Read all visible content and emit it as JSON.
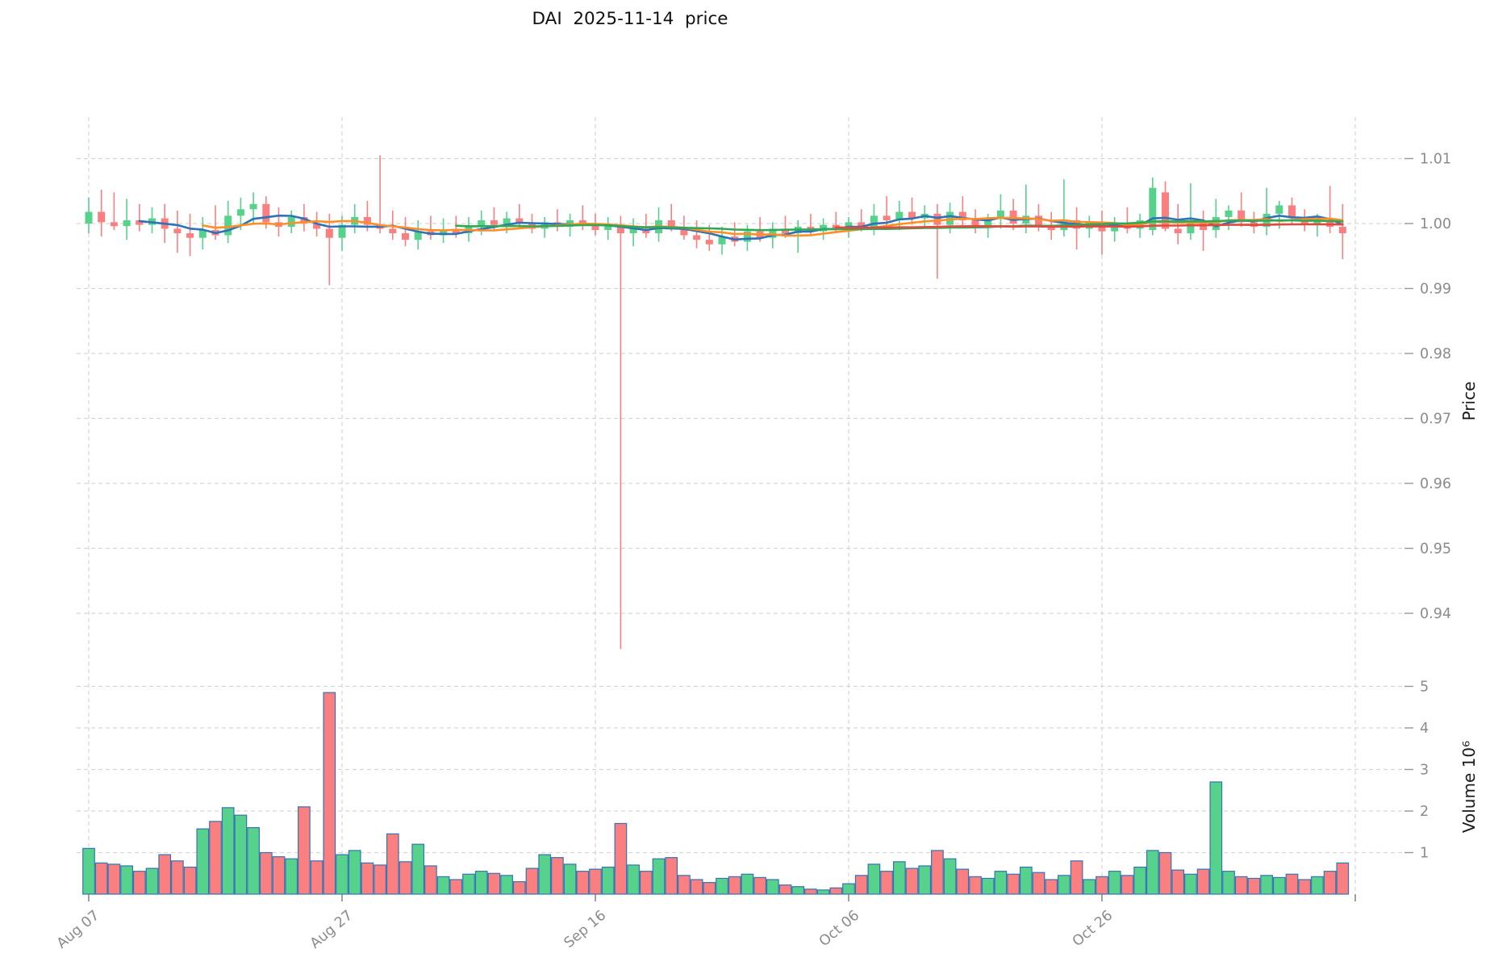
{
  "title": "DAI  2025-11-14  price",
  "chart_data": {
    "type": "candlestick",
    "panels": [
      "price",
      "volume"
    ],
    "price_axis": {
      "label": "Price",
      "ticks": [
        "1.01",
        "1.00",
        "0.99",
        "0.98",
        "0.97",
        "0.96",
        "0.95",
        "0.94"
      ],
      "ylim": [
        0.933,
        1.016
      ],
      "grid": "dashed"
    },
    "volume_axis": {
      "label": "Volume 10⁶",
      "ticks": [
        "1",
        "2",
        "3",
        "4",
        "5"
      ],
      "ylim": [
        0,
        5.15
      ],
      "unit": 1000000
    },
    "x_ticks": [
      {
        "label": "Aug 07",
        "day": 0
      },
      {
        "label": "Aug 27",
        "day": 20
      },
      {
        "label": "Sep 16",
        "day": 40
      },
      {
        "label": "Oct 06",
        "day": 60
      },
      {
        "label": "Oct 26",
        "day": 80
      },
      {
        "label": "",
        "day": 100
      }
    ],
    "colors": {
      "up": "#57d28c",
      "down": "#f97f80",
      "volume_border": "#3474b3",
      "grid": "#d6d6d6",
      "tick_text": "#8b8b8b",
      "axis_text": "#1a1a1a"
    },
    "mavs": [
      {
        "period": 5,
        "color": "#2e72b8"
      },
      {
        "period": 10,
        "color": "#ff8e27"
      },
      {
        "period": 30,
        "color": "#33a852"
      },
      {
        "period": 60,
        "color": "#e4483e"
      }
    ],
    "candles": [
      {
        "date": "2025-08-07",
        "o": 1.0,
        "h": 1.004,
        "l": 0.9985,
        "c": 1.0018,
        "v": 1.1
      },
      {
        "date": "2025-08-08",
        "o": 1.0018,
        "h": 1.0052,
        "l": 0.998,
        "c": 1.0002,
        "v": 0.75
      },
      {
        "date": "2025-08-09",
        "o": 1.0002,
        "h": 1.0048,
        "l": 0.999,
        "c": 0.9996,
        "v": 0.72
      },
      {
        "date": "2025-08-10",
        "o": 0.9996,
        "h": 1.0038,
        "l": 0.9975,
        "c": 1.0005,
        "v": 0.68
      },
      {
        "date": "2025-08-11",
        "o": 1.0005,
        "h": 1.003,
        "l": 0.9988,
        "c": 0.9998,
        "v": 0.55
      },
      {
        "date": "2025-08-12",
        "o": 0.9998,
        "h": 1.0025,
        "l": 0.9985,
        "c": 1.0008,
        "v": 0.62
      },
      {
        "date": "2025-08-13",
        "o": 1.0008,
        "h": 1.003,
        "l": 0.997,
        "c": 0.9992,
        "v": 0.95
      },
      {
        "date": "2025-08-14",
        "o": 0.9992,
        "h": 1.002,
        "l": 0.9955,
        "c": 0.9985,
        "v": 0.8
      },
      {
        "date": "2025-08-15",
        "o": 0.9985,
        "h": 1.0015,
        "l": 0.995,
        "c": 0.9978,
        "v": 0.65
      },
      {
        "date": "2025-08-16",
        "o": 0.9978,
        "h": 1.001,
        "l": 0.996,
        "c": 0.999,
        "v": 1.57
      },
      {
        "date": "2025-08-17",
        "o": 0.999,
        "h": 1.0028,
        "l": 0.9975,
        "c": 0.9982,
        "v": 1.75
      },
      {
        "date": "2025-08-18",
        "o": 0.9982,
        "h": 1.0035,
        "l": 0.997,
        "c": 1.0012,
        "v": 2.08
      },
      {
        "date": "2025-08-19",
        "o": 1.0012,
        "h": 1.004,
        "l": 0.999,
        "c": 1.0022,
        "v": 1.9
      },
      {
        "date": "2025-08-20",
        "o": 1.0022,
        "h": 1.0048,
        "l": 0.9998,
        "c": 1.003,
        "v": 1.6
      },
      {
        "date": "2025-08-21",
        "o": 1.003,
        "h": 1.0042,
        "l": 0.9992,
        "c": 1.0002,
        "v": 1.0
      },
      {
        "date": "2025-08-22",
        "o": 1.0002,
        "h": 1.0025,
        "l": 0.998,
        "c": 0.9995,
        "v": 0.9
      },
      {
        "date": "2025-08-23",
        "o": 0.9995,
        "h": 1.002,
        "l": 0.9985,
        "c": 1.001,
        "v": 0.85
      },
      {
        "date": "2025-08-24",
        "o": 1.001,
        "h": 1.003,
        "l": 0.9988,
        "c": 1.0,
        "v": 2.1
      },
      {
        "date": "2025-08-25",
        "o": 1.0,
        "h": 1.0018,
        "l": 0.998,
        "c": 0.9992,
        "v": 0.8
      },
      {
        "date": "2025-08-26",
        "o": 0.9992,
        "h": 1.0015,
        "l": 0.9905,
        "c": 0.9978,
        "v": 4.85
      },
      {
        "date": "2025-08-27",
        "o": 0.9978,
        "h": 1.0012,
        "l": 0.9958,
        "c": 0.9998,
        "v": 0.95
      },
      {
        "date": "2025-08-28",
        "o": 0.9998,
        "h": 1.003,
        "l": 0.9985,
        "c": 1.001,
        "v": 1.05
      },
      {
        "date": "2025-08-29",
        "o": 1.001,
        "h": 1.0035,
        "l": 0.9988,
        "c": 0.9998,
        "v": 0.75
      },
      {
        "date": "2025-08-30",
        "o": 0.9998,
        "h": 1.0105,
        "l": 0.9985,
        "c": 0.9992,
        "v": 0.7
      },
      {
        "date": "2025-08-31",
        "o": 0.9992,
        "h": 1.002,
        "l": 0.9975,
        "c": 0.9985,
        "v": 1.45
      },
      {
        "date": "2025-09-01",
        "o": 0.9985,
        "h": 1.001,
        "l": 0.9965,
        "c": 0.9975,
        "v": 0.78
      },
      {
        "date": "2025-09-02",
        "o": 0.9975,
        "h": 1.0005,
        "l": 0.996,
        "c": 0.9988,
        "v": 1.2
      },
      {
        "date": "2025-09-03",
        "o": 0.9988,
        "h": 1.0012,
        "l": 0.9975,
        "c": 0.9982,
        "v": 0.68
      },
      {
        "date": "2025-09-04",
        "o": 0.9982,
        "h": 1.0008,
        "l": 0.997,
        "c": 0.999,
        "v": 0.42
      },
      {
        "date": "2025-09-05",
        "o": 0.999,
        "h": 1.0012,
        "l": 0.9978,
        "c": 0.9985,
        "v": 0.35
      },
      {
        "date": "2025-09-06",
        "o": 0.9985,
        "h": 1.001,
        "l": 0.9972,
        "c": 0.9995,
        "v": 0.48
      },
      {
        "date": "2025-09-07",
        "o": 0.9995,
        "h": 1.002,
        "l": 0.9982,
        "c": 1.0005,
        "v": 0.55
      },
      {
        "date": "2025-09-08",
        "o": 1.0005,
        "h": 1.0025,
        "l": 0.999,
        "c": 0.9998,
        "v": 0.5
      },
      {
        "date": "2025-09-09",
        "o": 0.9998,
        "h": 1.0018,
        "l": 0.9985,
        "c": 1.0008,
        "v": 0.45
      },
      {
        "date": "2025-09-10",
        "o": 1.0008,
        "h": 1.003,
        "l": 0.9992,
        "c": 1.0,
        "v": 0.3
      },
      {
        "date": "2025-09-11",
        "o": 1.0,
        "h": 1.0015,
        "l": 0.9985,
        "c": 0.9992,
        "v": 0.62
      },
      {
        "date": "2025-09-12",
        "o": 0.9992,
        "h": 1.001,
        "l": 0.9978,
        "c": 1.0002,
        "v": 0.95
      },
      {
        "date": "2025-09-13",
        "o": 1.0002,
        "h": 1.0022,
        "l": 0.9988,
        "c": 0.9995,
        "v": 0.88
      },
      {
        "date": "2025-09-14",
        "o": 0.9995,
        "h": 1.0015,
        "l": 0.998,
        "c": 1.0005,
        "v": 0.72
      },
      {
        "date": "2025-09-15",
        "o": 1.0005,
        "h": 1.0028,
        "l": 0.999,
        "c": 0.9998,
        "v": 0.55
      },
      {
        "date": "2025-09-16",
        "o": 0.9998,
        "h": 1.0015,
        "l": 0.9982,
        "c": 0.999,
        "v": 0.6
      },
      {
        "date": "2025-09-17",
        "o": 0.999,
        "h": 1.001,
        "l": 0.9975,
        "c": 0.9998,
        "v": 0.65
      },
      {
        "date": "2025-09-18",
        "o": 0.9998,
        "h": 1.0012,
        "l": 0.9345,
        "c": 0.9985,
        "v": 1.7
      },
      {
        "date": "2025-09-19",
        "o": 0.9985,
        "h": 1.0008,
        "l": 0.9965,
        "c": 0.9992,
        "v": 0.7
      },
      {
        "date": "2025-09-20",
        "o": 0.9992,
        "h": 1.0015,
        "l": 0.9978,
        "c": 0.9985,
        "v": 0.55
      },
      {
        "date": "2025-09-21",
        "o": 0.9985,
        "h": 1.0025,
        "l": 0.9972,
        "c": 1.0005,
        "v": 0.85
      },
      {
        "date": "2025-09-22",
        "o": 1.0005,
        "h": 1.003,
        "l": 0.9988,
        "c": 0.9995,
        "v": 0.88
      },
      {
        "date": "2025-09-23",
        "o": 0.9995,
        "h": 1.0012,
        "l": 0.9975,
        "c": 0.9982,
        "v": 0.45
      },
      {
        "date": "2025-09-24",
        "o": 0.9982,
        "h": 1.0005,
        "l": 0.9962,
        "c": 0.9975,
        "v": 0.35
      },
      {
        "date": "2025-09-25",
        "o": 0.9975,
        "h": 0.9998,
        "l": 0.9958,
        "c": 0.9968,
        "v": 0.28
      },
      {
        "date": "2025-09-26",
        "o": 0.9968,
        "h": 0.9995,
        "l": 0.9952,
        "c": 0.998,
        "v": 0.38
      },
      {
        "date": "2025-09-27",
        "o": 0.998,
        "h": 1.0002,
        "l": 0.9965,
        "c": 0.9972,
        "v": 0.42
      },
      {
        "date": "2025-09-28",
        "o": 0.9972,
        "h": 0.9998,
        "l": 0.9958,
        "c": 0.9988,
        "v": 0.48
      },
      {
        "date": "2025-09-29",
        "o": 0.9988,
        "h": 1.001,
        "l": 0.9972,
        "c": 0.9978,
        "v": 0.4
      },
      {
        "date": "2025-09-30",
        "o": 0.9978,
        "h": 1.0002,
        "l": 0.9962,
        "c": 0.9992,
        "v": 0.35
      },
      {
        "date": "2025-10-01",
        "o": 0.9992,
        "h": 1.0012,
        "l": 0.9978,
        "c": 0.9985,
        "v": 0.22
      },
      {
        "date": "2025-10-02",
        "o": 0.9985,
        "h": 1.0005,
        "l": 0.9955,
        "c": 0.9995,
        "v": 0.18
      },
      {
        "date": "2025-10-03",
        "o": 0.9995,
        "h": 1.0015,
        "l": 0.9982,
        "c": 0.9988,
        "v": 0.12
      },
      {
        "date": "2025-10-04",
        "o": 0.9988,
        "h": 1.0008,
        "l": 0.9975,
        "c": 0.9998,
        "v": 0.1
      },
      {
        "date": "2025-10-05",
        "o": 0.9998,
        "h": 1.0018,
        "l": 0.9985,
        "c": 0.9992,
        "v": 0.15
      },
      {
        "date": "2025-10-06",
        "o": 0.9992,
        "h": 1.001,
        "l": 0.9978,
        "c": 1.0002,
        "v": 0.25
      },
      {
        "date": "2025-10-07",
        "o": 1.0002,
        "h": 1.0022,
        "l": 0.9988,
        "c": 0.9995,
        "v": 0.45
      },
      {
        "date": "2025-10-08",
        "o": 0.9995,
        "h": 1.003,
        "l": 0.9982,
        "c": 1.0012,
        "v": 0.72
      },
      {
        "date": "2025-10-09",
        "o": 1.0012,
        "h": 1.0042,
        "l": 0.9995,
        "c": 1.0005,
        "v": 0.55
      },
      {
        "date": "2025-10-10",
        "o": 1.0005,
        "h": 1.0035,
        "l": 0.999,
        "c": 1.0018,
        "v": 0.78
      },
      {
        "date": "2025-10-11",
        "o": 1.0018,
        "h": 1.004,
        "l": 0.9998,
        "c": 1.0008,
        "v": 0.62
      },
      {
        "date": "2025-10-12",
        "o": 1.0008,
        "h": 1.0028,
        "l": 0.9992,
        "c": 1.0015,
        "v": 0.68
      },
      {
        "date": "2025-10-13",
        "o": 1.0015,
        "h": 1.003,
        "l": 0.9915,
        "c": 0.9998,
        "v": 1.05
      },
      {
        "date": "2025-10-14",
        "o": 0.9998,
        "h": 1.0032,
        "l": 0.9985,
        "c": 1.0018,
        "v": 0.85
      },
      {
        "date": "2025-10-15",
        "o": 1.0018,
        "h": 1.0042,
        "l": 0.9995,
        "c": 1.0005,
        "v": 0.6
      },
      {
        "date": "2025-10-16",
        "o": 1.0005,
        "h": 1.0022,
        "l": 0.9985,
        "c": 0.9995,
        "v": 0.42
      },
      {
        "date": "2025-10-17",
        "o": 0.9995,
        "h": 1.0015,
        "l": 0.9978,
        "c": 1.0008,
        "v": 0.38
      },
      {
        "date": "2025-10-18",
        "o": 1.0008,
        "h": 1.0045,
        "l": 0.9992,
        "c": 1.002,
        "v": 0.55
      },
      {
        "date": "2025-10-19",
        "o": 1.002,
        "h": 1.0038,
        "l": 0.999,
        "c": 1.0,
        "v": 0.48
      },
      {
        "date": "2025-10-20",
        "o": 1.0,
        "h": 1.006,
        "l": 0.9985,
        "c": 1.0012,
        "v": 0.65
      },
      {
        "date": "2025-10-21",
        "o": 1.0012,
        "h": 1.003,
        "l": 0.9988,
        "c": 0.9998,
        "v": 0.52
      },
      {
        "date": "2025-10-22",
        "o": 0.9998,
        "h": 1.0018,
        "l": 0.9975,
        "c": 0.999,
        "v": 0.35
      },
      {
        "date": "2025-10-23",
        "o": 0.999,
        "h": 1.0068,
        "l": 0.998,
        "c": 1.0005,
        "v": 0.45
      },
      {
        "date": "2025-10-24",
        "o": 1.0005,
        "h": 1.0025,
        "l": 0.996,
        "c": 0.9992,
        "v": 0.8
      },
      {
        "date": "2025-10-25",
        "o": 0.9992,
        "h": 1.0012,
        "l": 0.9978,
        "c": 1.0002,
        "v": 0.35
      },
      {
        "date": "2025-10-26",
        "o": 1.0002,
        "h": 1.002,
        "l": 0.9952,
        "c": 0.9988,
        "v": 0.42
      },
      {
        "date": "2025-10-27",
        "o": 0.9988,
        "h": 1.001,
        "l": 0.9972,
        "c": 1.0,
        "v": 0.55
      },
      {
        "date": "2025-10-28",
        "o": 1.0,
        "h": 1.0025,
        "l": 0.9985,
        "c": 0.9992,
        "v": 0.45
      },
      {
        "date": "2025-10-29",
        "o": 0.9992,
        "h": 1.0015,
        "l": 0.9978,
        "c": 1.0005,
        "v": 0.65
      },
      {
        "date": "2025-10-30",
        "o": 0.999,
        "h": 1.0071,
        "l": 0.9982,
        "c": 1.0055,
        "v": 1.05
      },
      {
        "date": "2025-10-31",
        "o": 1.0048,
        "h": 1.0065,
        "l": 0.9988,
        "c": 0.9992,
        "v": 1.0
      },
      {
        "date": "2025-11-01",
        "o": 0.9992,
        "h": 1.003,
        "l": 0.9968,
        "c": 0.9985,
        "v": 0.58
      },
      {
        "date": "2025-11-02",
        "o": 0.9985,
        "h": 1.0062,
        "l": 0.9975,
        "c": 1.0002,
        "v": 0.48
      },
      {
        "date": "2025-11-03",
        "o": 1.0002,
        "h": 1.002,
        "l": 0.9958,
        "c": 0.999,
        "v": 0.6
      },
      {
        "date": "2025-11-04",
        "o": 0.999,
        "h": 1.0038,
        "l": 0.9978,
        "c": 1.001,
        "v": 2.7
      },
      {
        "date": "2025-11-05",
        "o": 1.001,
        "h": 1.0028,
        "l": 0.999,
        "c": 1.002,
        "v": 0.55
      },
      {
        "date": "2025-11-06",
        "o": 1.002,
        "h": 1.0048,
        "l": 0.9995,
        "c": 1.0002,
        "v": 0.42
      },
      {
        "date": "2025-11-07",
        "o": 1.0002,
        "h": 1.0018,
        "l": 0.9985,
        "c": 0.9995,
        "v": 0.38
      },
      {
        "date": "2025-11-08",
        "o": 0.9995,
        "h": 1.0055,
        "l": 0.9982,
        "c": 1.0015,
        "v": 0.45
      },
      {
        "date": "2025-11-09",
        "o": 1.0015,
        "h": 1.0035,
        "l": 0.9992,
        "c": 1.0028,
        "v": 0.4
      },
      {
        "date": "2025-11-10",
        "o": 1.0028,
        "h": 1.004,
        "l": 0.9998,
        "c": 1.0008,
        "v": 0.48
      },
      {
        "date": "2025-11-11",
        "o": 1.0008,
        "h": 1.0022,
        "l": 0.9988,
        "c": 0.9998,
        "v": 0.35
      },
      {
        "date": "2025-11-12",
        "o": 0.9998,
        "h": 1.0015,
        "l": 0.998,
        "c": 1.0005,
        "v": 0.42
      },
      {
        "date": "2025-11-13",
        "o": 1.0005,
        "h": 1.0058,
        "l": 0.9985,
        "c": 0.9995,
        "v": 0.55
      },
      {
        "date": "2025-11-14",
        "o": 0.9995,
        "h": 1.003,
        "l": 0.9945,
        "c": 0.9985,
        "v": 0.75
      }
    ]
  }
}
